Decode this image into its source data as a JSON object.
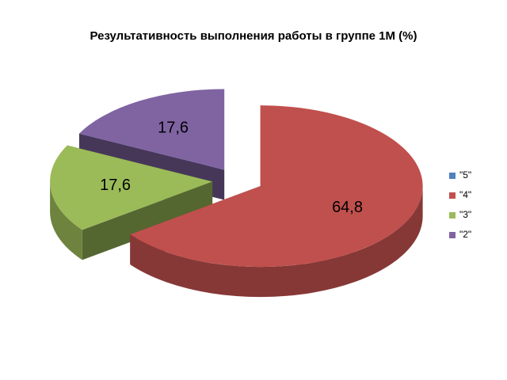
{
  "chart_data": {
    "type": "pie",
    "title": "Результативность выполнения работы в группе 1М (%)",
    "categories": [
      "\"5\"",
      "\"4\"",
      "\"3\"",
      "\"2\""
    ],
    "values": [
      0,
      64.8,
      17.6,
      17.6
    ],
    "value_labels": [
      null,
      "64,8",
      "17,6",
      "17,6"
    ],
    "colors": [
      "#4f81bd",
      "#c0504d",
      "#9bbb59",
      "#8064a2"
    ],
    "legend": "right"
  }
}
